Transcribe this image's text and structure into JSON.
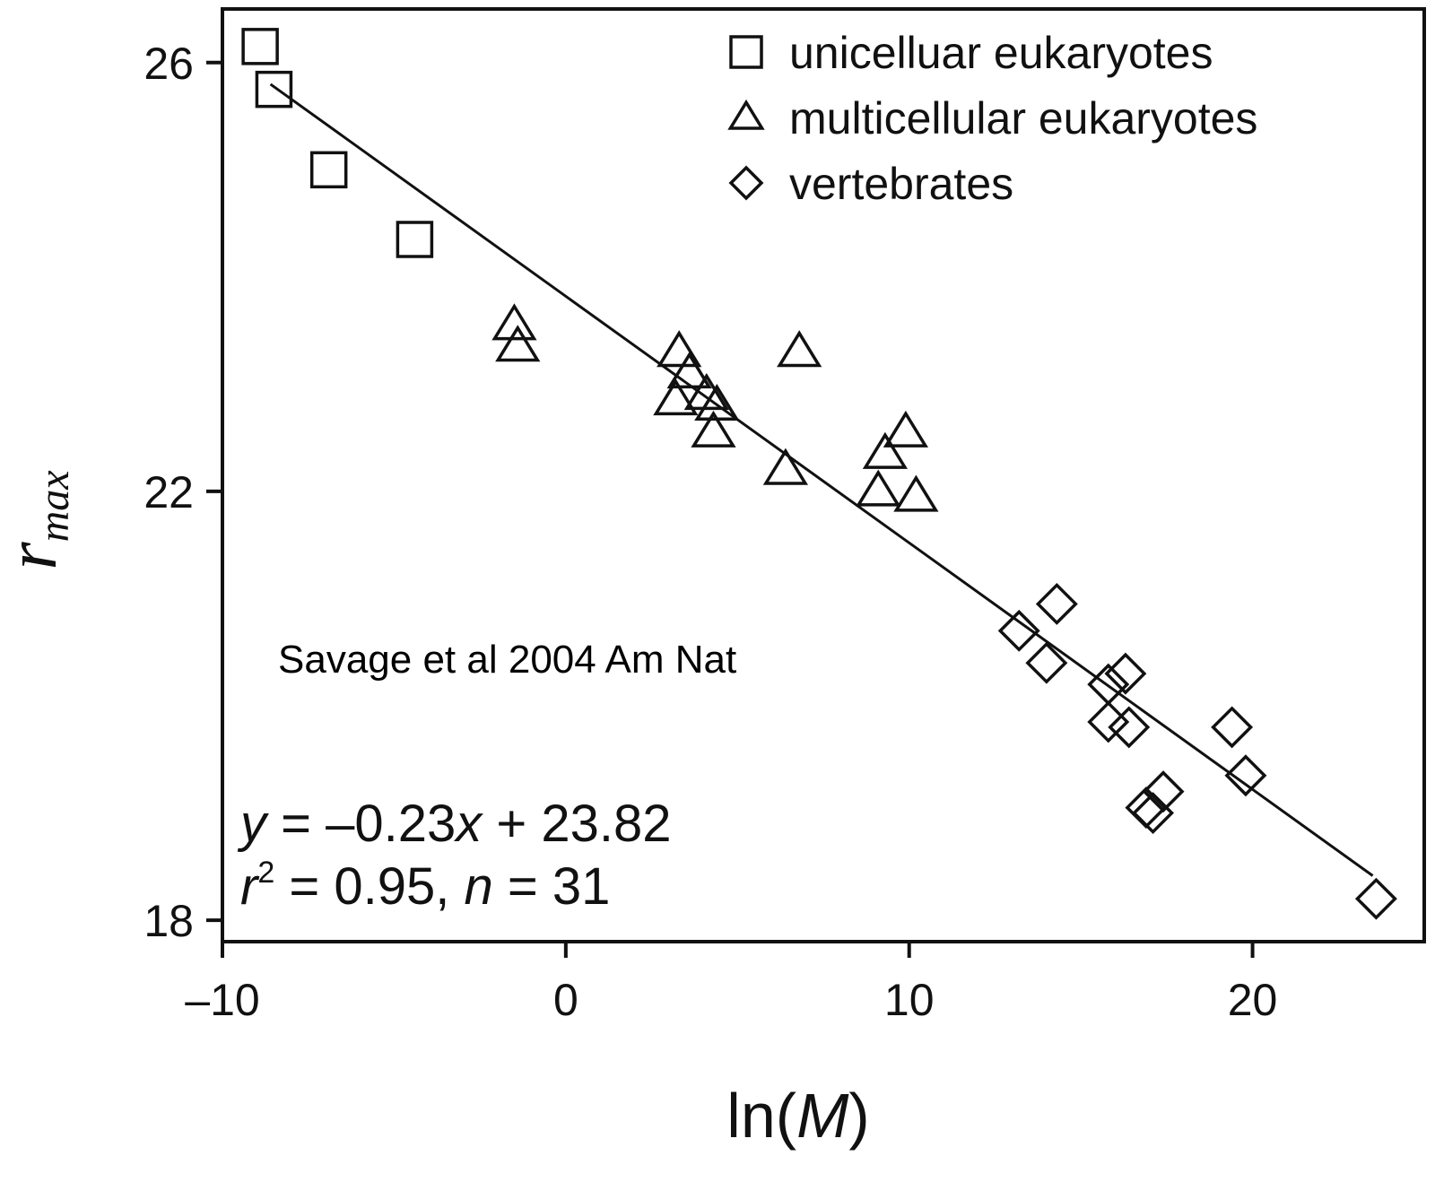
{
  "chart_data": {
    "type": "scatter",
    "title": "",
    "xlabel": "ln(M)",
    "xlabel_prefix": "ln(",
    "xlabel_var": "M",
    "xlabel_suffix": ")",
    "ylabel": "r_max",
    "ylabel_main": "r",
    "ylabel_sub": "max",
    "xlim": [
      -10,
      25
    ],
    "ylim": [
      17.8,
      26.5
    ],
    "xticks": [
      -10,
      0,
      10,
      20
    ],
    "xtick_labels": [
      "–10",
      "0",
      "10",
      "20"
    ],
    "yticks": [
      18,
      22,
      26
    ],
    "ytick_labels": [
      "18",
      "22",
      "26"
    ],
    "grid": false,
    "legend_position": "top-right",
    "series": [
      {
        "name": "unicelluar eukaryotes",
        "marker": "square",
        "points": [
          {
            "x": -8.9,
            "y": 26.15
          },
          {
            "x": -8.5,
            "y": 25.75
          },
          {
            "x": -6.9,
            "y": 25.0
          },
          {
            "x": -4.4,
            "y": 24.35
          }
        ]
      },
      {
        "name": "multicellular eukaryotes",
        "marker": "triangle",
        "points": [
          {
            "x": -1.5,
            "y": 23.55
          },
          {
            "x": -1.4,
            "y": 23.35
          },
          {
            "x": 3.3,
            "y": 23.3
          },
          {
            "x": 3.6,
            "y": 23.1
          },
          {
            "x": 3.2,
            "y": 22.85
          },
          {
            "x": 4.1,
            "y": 22.9
          },
          {
            "x": 4.4,
            "y": 22.8
          },
          {
            "x": 4.3,
            "y": 22.55
          },
          {
            "x": 6.8,
            "y": 23.3
          },
          {
            "x": 6.4,
            "y": 22.2
          },
          {
            "x": 9.3,
            "y": 22.35
          },
          {
            "x": 9.9,
            "y": 22.55
          },
          {
            "x": 9.1,
            "y": 22.0
          },
          {
            "x": 10.2,
            "y": 21.95
          }
        ]
      },
      {
        "name": "vertebrates",
        "marker": "diamond",
        "points": [
          {
            "x": 13.2,
            "y": 20.7
          },
          {
            "x": 14.3,
            "y": 20.95
          },
          {
            "x": 14.0,
            "y": 20.4
          },
          {
            "x": 15.8,
            "y": 20.2
          },
          {
            "x": 16.3,
            "y": 20.3
          },
          {
            "x": 15.8,
            "y": 19.85
          },
          {
            "x": 16.4,
            "y": 19.8
          },
          {
            "x": 19.4,
            "y": 19.8
          },
          {
            "x": 19.8,
            "y": 19.35
          },
          {
            "x": 17.4,
            "y": 19.2
          },
          {
            "x": 16.9,
            "y": 19.05
          },
          {
            "x": 17.1,
            "y": 19.0
          },
          {
            "x": 23.6,
            "y": 18.2
          }
        ]
      }
    ],
    "fit_line": {
      "slope": -0.23,
      "intercept": 23.82,
      "x_start": -8.6,
      "x_end": 23.5
    },
    "equation": {
      "line1": {
        "y": "y",
        "eq": " = –0.23",
        "x": "x",
        "rest": " + 23.82"
      },
      "line2": {
        "r": "r",
        "sup": "2",
        "mid": " = 0.95, ",
        "n": "n",
        "rest": " = 31"
      }
    },
    "annotation": "Savage et al 2004 Am Nat"
  }
}
